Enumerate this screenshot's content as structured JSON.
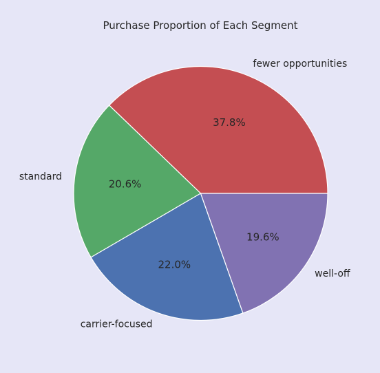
{
  "chart_data": {
    "type": "pie",
    "title": "Purchase Proportion of Each Segment",
    "slices": [
      {
        "label": "fewer opportunities",
        "value": 37.8,
        "pct_label": "37.8%",
        "color": "#c44e52"
      },
      {
        "label": "standard",
        "value": 20.6,
        "pct_label": "20.6%",
        "color": "#55a868"
      },
      {
        "label": "carrier-focused",
        "value": 22.0,
        "pct_label": "22.0%",
        "color": "#4c72b0"
      },
      {
        "label": "well-off",
        "value": 19.6,
        "pct_label": "19.6%",
        "color": "#8172b2"
      }
    ],
    "start_angle_deg": 0,
    "direction": "counterclockwise",
    "legend": "none"
  }
}
